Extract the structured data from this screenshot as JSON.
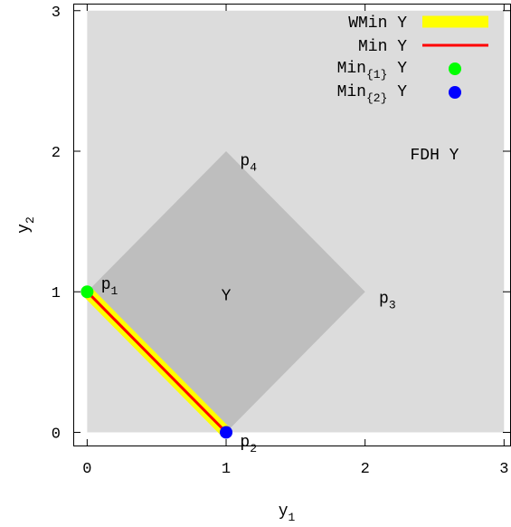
{
  "chart_data": {
    "type": "area",
    "x": {
      "label_base": "y",
      "label_sub": "1",
      "range": [
        -0.1,
        3.05
      ],
      "ticks": [
        0,
        1,
        2,
        3
      ],
      "tick_labels": [
        "0",
        "1",
        "2",
        "3"
      ]
    },
    "y": {
      "label_base": "y",
      "label_sub": "2",
      "range": [
        -0.1,
        3.05
      ],
      "ticks": [
        0,
        1,
        2,
        3
      ],
      "tick_labels": [
        "0",
        "1",
        "2",
        "3"
      ]
    },
    "grid": false,
    "legend_position": "top-right",
    "regions": [
      {
        "name": "FDH Y",
        "color": "#dcdcdc",
        "points": [
          [
            0,
            3
          ],
          [
            3,
            3
          ],
          [
            3,
            0
          ],
          [
            0,
            0
          ]
        ]
      },
      {
        "name": "Y",
        "color": "#bebebe",
        "points": [
          [
            0,
            1
          ],
          [
            1,
            2
          ],
          [
            2,
            1
          ],
          [
            1,
            0
          ]
        ]
      }
    ],
    "series": [
      {
        "name": "WMin Y",
        "kind": "line",
        "color": "#ffff00",
        "points": [
          [
            0,
            1
          ],
          [
            1,
            0
          ]
        ]
      },
      {
        "name": "Min Y",
        "kind": "line",
        "color": "#ff0000",
        "points": [
          [
            0,
            1
          ],
          [
            1,
            0
          ]
        ]
      },
      {
        "name_base": "Min",
        "name_sub": "{1}",
        "name_tail": " Y",
        "kind": "point",
        "color": "#00ff00",
        "points": [
          [
            0,
            1
          ]
        ]
      },
      {
        "name_base": "Min",
        "name_sub": "{2}",
        "name_tail": " Y",
        "kind": "point",
        "color": "#0000ff",
        "points": [
          [
            1,
            0
          ]
        ]
      }
    ],
    "annotations": [
      {
        "base": "p",
        "sub": "1",
        "at": [
          0.1,
          1.06
        ]
      },
      {
        "base": "p",
        "sub": "2",
        "at": [
          1.1,
          -0.06
        ]
      },
      {
        "base": "p",
        "sub": "3",
        "at": [
          2.1,
          0.96
        ]
      },
      {
        "base": "p",
        "sub": "4",
        "at": [
          1.1,
          1.94
        ]
      },
      {
        "text": "Y",
        "at": [
          1.0,
          0.98
        ]
      },
      {
        "text": "FDH Y",
        "at": [
          2.5,
          1.98
        ]
      }
    ]
  }
}
